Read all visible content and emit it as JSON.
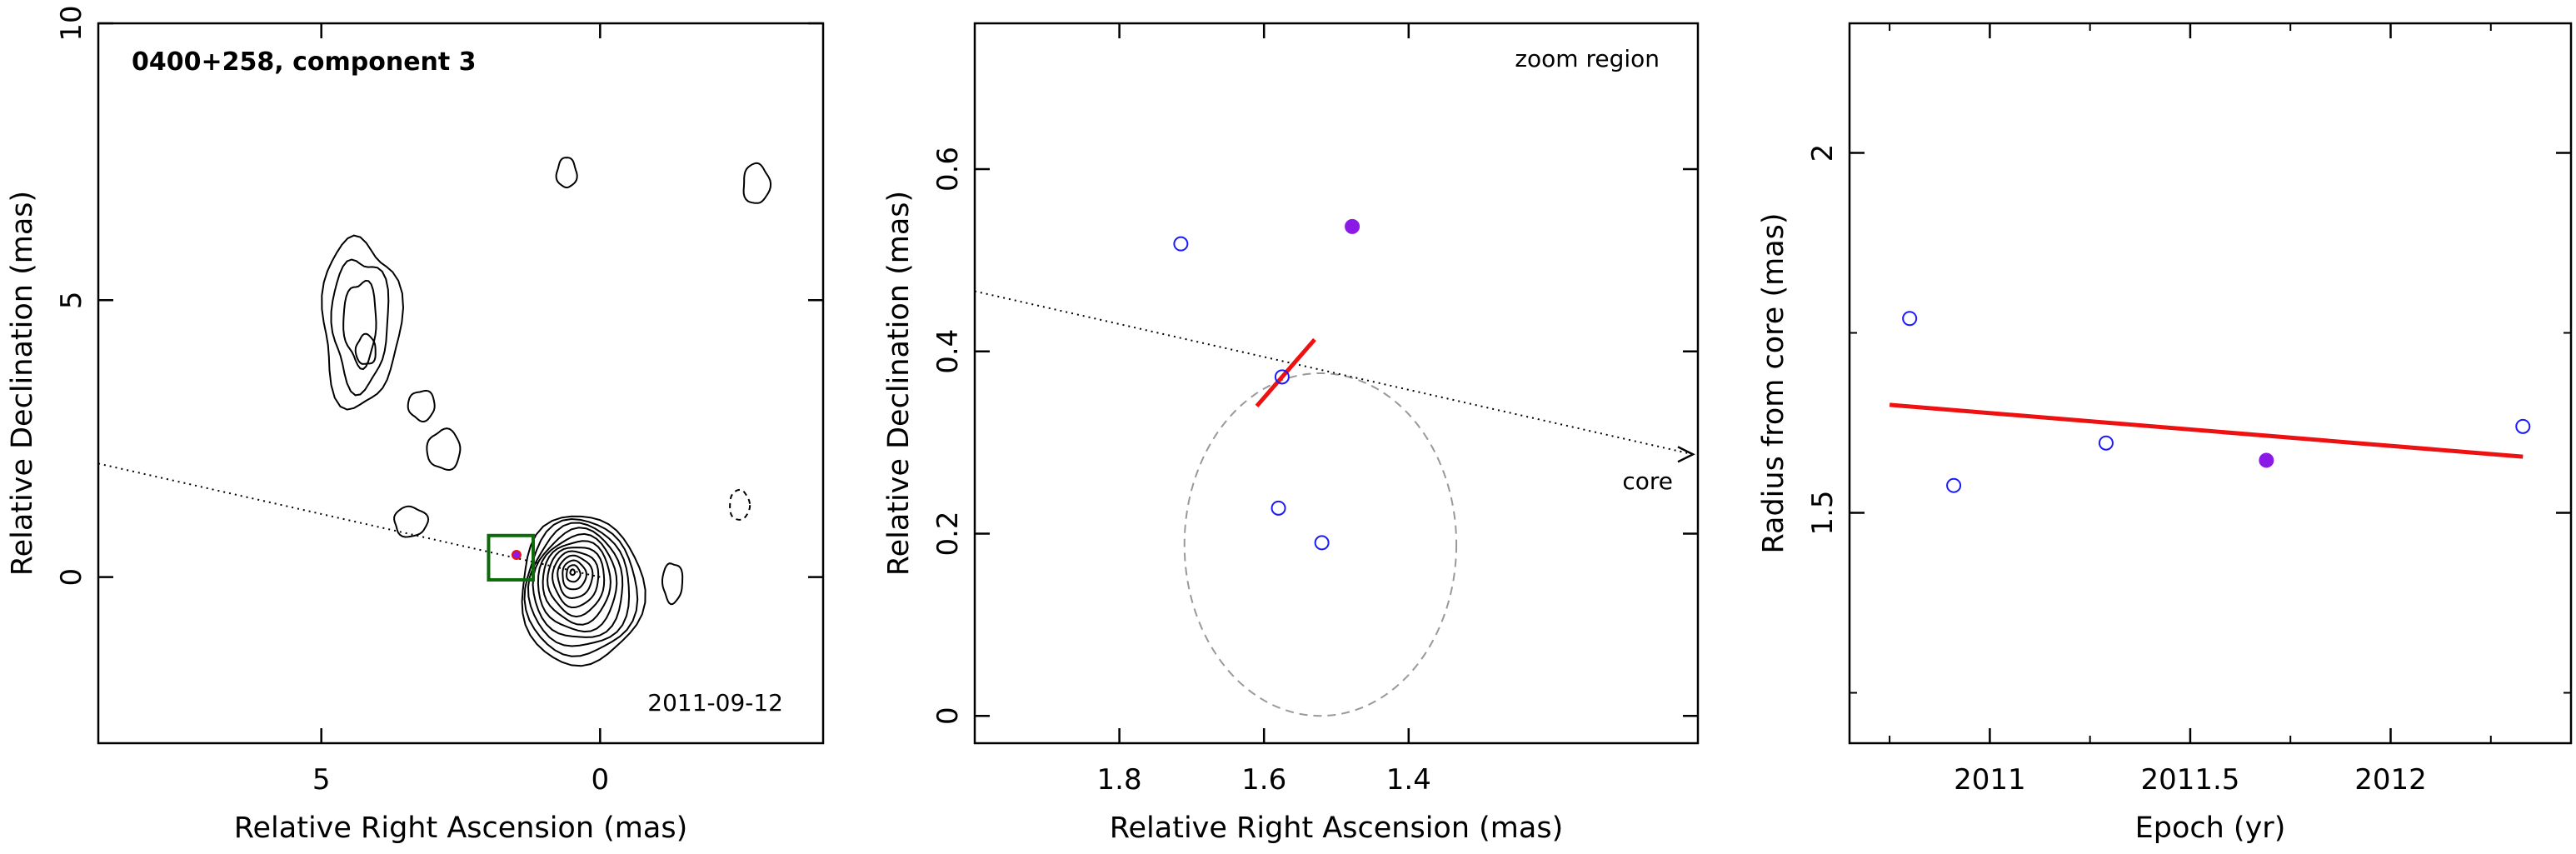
{
  "colors": {
    "open_point": "#1a1aff",
    "filled_point": "#8b1ae6",
    "fit_line": "#ee1111",
    "zoom_box": "#0b6b0b",
    "circle": "#999999",
    "contour": "#000000"
  },
  "chart_data": [
    {
      "type": "contour",
      "title": "0400+258, component 3",
      "date": "2011-09-12",
      "xlabel": "Relative Right Ascension (mas)",
      "ylabel": "Relative Declination (mas)",
      "xlim": [
        9.0,
        -4.0
      ],
      "ylim": [
        -3.0,
        10.0
      ],
      "xticks": [
        5,
        0
      ],
      "yticks": [
        0,
        5,
        10
      ],
      "x_reversed": true,
      "contour_sources": [
        {
          "name": "core",
          "center": [
            0.5,
            0.1
          ],
          "radii": [
            0.05,
            0.15,
            0.26,
            0.38,
            0.5,
            0.62,
            0.74,
            0.86,
            0.98,
            1.1,
            1.22,
            1.34
          ]
        },
        {
          "name": "diffuse jet region",
          "center": [
            4.3,
            4.6
          ],
          "extent": [
            1.4,
            3.0
          ]
        },
        {
          "name": "small islands",
          "centers": [
            [
              0.6,
              7.3
            ],
            [
              -2.8,
              7.1
            ],
            [
              3.4,
              1.0
            ],
            [
              -1.3,
              -0.1
            ],
            [
              3.2,
              3.1
            ],
            [
              2.8,
              2.3
            ],
            [
              4.2,
              4.1
            ]
          ]
        }
      ],
      "negative_contour_center": [
        -2.5,
        1.3
      ],
      "zoom_box": {
        "x": [
          1.2,
          2.0
        ],
        "y": [
          -0.05,
          0.75
        ]
      },
      "component_point": {
        "x": 1.5,
        "y": 0.4
      },
      "direction_line": {
        "from": [
          9.0,
          2.05
        ],
        "to": [
          0.0,
          0.0
        ],
        "style": "dotted"
      }
    },
    {
      "type": "scatter",
      "annotation": "zoom region",
      "core_label": "core",
      "xlabel": "Relative Right Ascension (mas)",
      "ylabel": "Relative Declination (mas)",
      "xlim": [
        2.0,
        1.0
      ],
      "ylim": [
        -0.03,
        0.76
      ],
      "xticks": [
        1.8,
        1.6,
        1.4
      ],
      "yticks": [
        0,
        0.2,
        0.4,
        0.6
      ],
      "x_reversed": true,
      "open_points": [
        {
          "x": 1.715,
          "y": 0.518
        },
        {
          "x": 1.575,
          "y": 0.372
        },
        {
          "x": 1.58,
          "y": 0.228
        },
        {
          "x": 1.52,
          "y": 0.19
        }
      ],
      "filled_points": [
        {
          "x": 1.478,
          "y": 0.537
        }
      ],
      "fit_line": {
        "x": [
          1.61,
          1.53
        ],
        "y": [
          0.34,
          0.413
        ]
      },
      "circle": {
        "center": [
          1.522,
          0.188
        ],
        "radius": 0.188
      },
      "direction_line": {
        "from": [
          2.0,
          0.466
        ],
        "to": [
          1.0,
          0.287
        ],
        "style": "dotted",
        "arrow": true
      }
    },
    {
      "type": "scatter",
      "xlabel": "Epoch (yr)",
      "ylabel": "Radius from core (mas)",
      "xlim": [
        2010.65,
        2012.45
      ],
      "ylim": [
        1.18,
        2.18
      ],
      "xticks": [
        "2011",
        "2011.5",
        "2012"
      ],
      "xtick_values": [
        2011.0,
        2011.5,
        2012.0
      ],
      "yticks": [
        "1.5",
        "2"
      ],
      "ytick_values": [
        1.5,
        2.0
      ],
      "open_points": [
        {
          "x": 2010.8,
          "y": 1.77
        },
        {
          "x": 2010.91,
          "y": 1.538
        },
        {
          "x": 2011.29,
          "y": 1.597
        },
        {
          "x": 2012.33,
          "y": 1.62
        }
      ],
      "filled_points": [
        {
          "x": 2011.69,
          "y": 1.573
        }
      ],
      "fit_line": {
        "x": [
          2010.75,
          2012.33
        ],
        "y": [
          1.65,
          1.578
        ]
      }
    }
  ]
}
